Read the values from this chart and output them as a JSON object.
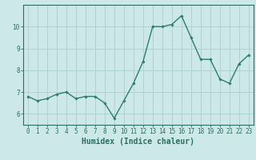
{
  "x": [
    0,
    1,
    2,
    3,
    4,
    5,
    6,
    7,
    8,
    9,
    10,
    11,
    12,
    13,
    14,
    15,
    16,
    17,
    18,
    19,
    20,
    21,
    22,
    23
  ],
  "y": [
    6.8,
    6.6,
    6.7,
    6.9,
    7.0,
    6.7,
    6.8,
    6.8,
    6.5,
    5.8,
    6.6,
    7.4,
    8.4,
    10.0,
    10.0,
    10.1,
    10.5,
    9.5,
    8.5,
    8.5,
    7.6,
    7.4,
    8.3,
    8.7
  ],
  "line_color": "#2d7d6e",
  "marker": "D",
  "marker_size": 1.8,
  "linewidth": 1.0,
  "bg_color": "#cce8e8",
  "grid_color": "#aacfcf",
  "xlabel": "Humidex (Indice chaleur)",
  "ylim": [
    5.5,
    11.0
  ],
  "xlim": [
    -0.5,
    23.5
  ],
  "yticks": [
    6,
    7,
    8,
    9,
    10
  ],
  "xticks": [
    0,
    1,
    2,
    3,
    4,
    5,
    6,
    7,
    8,
    9,
    10,
    11,
    12,
    13,
    14,
    15,
    16,
    17,
    18,
    19,
    20,
    21,
    22,
    23
  ],
  "tick_label_fontsize": 5.5,
  "xlabel_fontsize": 7.0,
  "axis_color": "#2d6e60",
  "tick_color": "#2d6e60"
}
